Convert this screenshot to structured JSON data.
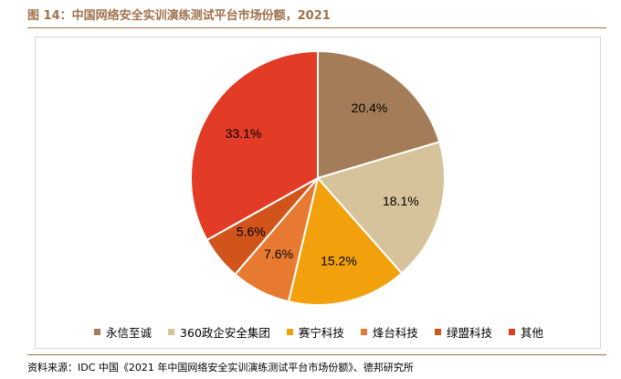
{
  "header": {
    "title": "图 14：中国网络安全实训演练测试平台市场份额，2021"
  },
  "footer": {
    "source": "资料来源：IDC 中国《2021 年中国网络安全实训演练测试平台市场份额》、德邦研究所"
  },
  "chart_data": {
    "type": "pie",
    "title": "",
    "start_angle_deg": 0,
    "direction": "clockwise",
    "legend_position": "bottom",
    "slices": [
      {
        "name": "永信至诚",
        "value": 20.4,
        "label": "20.4%",
        "color": "#a47d58"
      },
      {
        "name": "360政企安全集团",
        "value": 18.1,
        "label": "18.1%",
        "color": "#d6c39b"
      },
      {
        "name": "赛宁科技",
        "value": 15.2,
        "label": "15.2%",
        "color": "#f2a10c"
      },
      {
        "name": "烽台科技",
        "value": 7.6,
        "label": "7.6%",
        "color": "#e77a30"
      },
      {
        "name": "绿盟科技",
        "value": 5.6,
        "label": "5.6%",
        "color": "#d1541a"
      },
      {
        "name": "其他",
        "value": 33.1,
        "label": "33.1%",
        "color": "#e23b26"
      }
    ]
  }
}
